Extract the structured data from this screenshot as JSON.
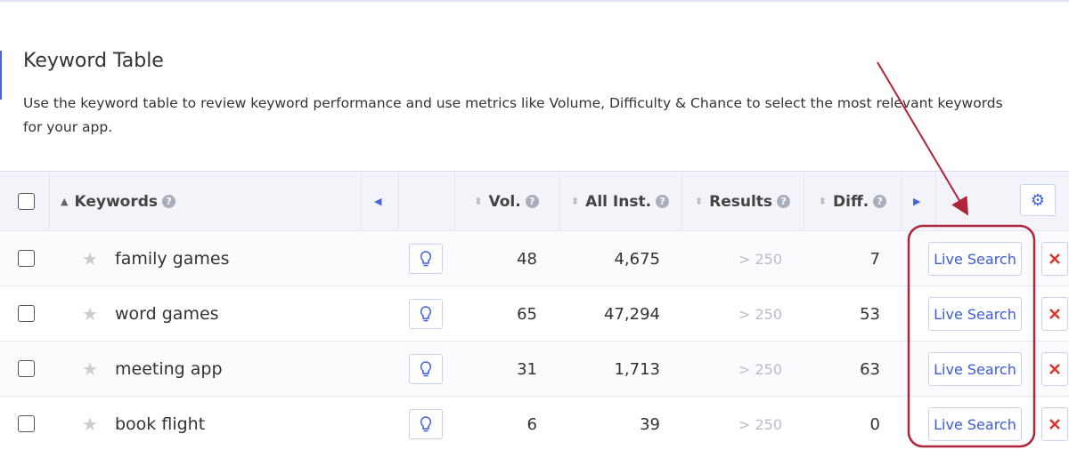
{
  "header": {
    "title": "Keyword Table",
    "description": "Use the keyword table to review keyword performance and use metrics like Volume, Difficulty & Chance to select the most relevant keywords for your app."
  },
  "table": {
    "columns": [
      "Keywords",
      "Vol.",
      "All Inst.",
      "Results",
      "Diff."
    ],
    "rows": [
      {
        "keyword": "family games",
        "vol": "48",
        "all_inst": "4,675",
        "results": "> 250",
        "diff": "7",
        "action": "Live Search"
      },
      {
        "keyword": "word games",
        "vol": "65",
        "all_inst": "47,294",
        "results": "> 250",
        "diff": "53",
        "action": "Live Search"
      },
      {
        "keyword": "meeting app",
        "vol": "31",
        "all_inst": "1,713",
        "results": "> 250",
        "diff": "63",
        "action": "Live Search"
      },
      {
        "keyword": "book flight",
        "vol": "6",
        "all_inst": "39",
        "results": "> 250",
        "diff": "0",
        "action": "Live Search"
      }
    ]
  }
}
